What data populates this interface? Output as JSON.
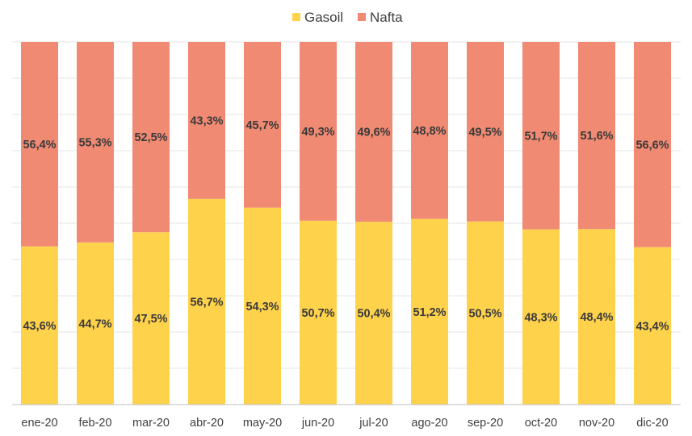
{
  "chart_data": {
    "type": "bar",
    "stacked": "percent",
    "title": "",
    "xlabel": "",
    "ylabel": "",
    "ylim": [
      0,
      100
    ],
    "grid": true,
    "legend_position": "top-center",
    "categories": [
      "ene-20",
      "feb-20",
      "mar-20",
      "abr-20",
      "may-20",
      "jun-20",
      "jul-20",
      "ago-20",
      "sep-20",
      "oct-20",
      "nov-20",
      "dic-20"
    ],
    "series": [
      {
        "name": "Gasoil",
        "color": "#FFD24C",
        "values": [
          43.6,
          44.7,
          47.5,
          56.7,
          54.3,
          50.7,
          50.4,
          51.2,
          50.5,
          48.3,
          48.4,
          43.4
        ],
        "labels": [
          "43,6%",
          "44,7%",
          "47,5%",
          "56,7%",
          "54,3%",
          "50,7%",
          "50,4%",
          "51,2%",
          "50,5%",
          "48,3%",
          "48,4%",
          "43,4%"
        ]
      },
      {
        "name": "Nafta",
        "color": "#F18A73",
        "values": [
          56.4,
          55.3,
          52.5,
          43.3,
          45.7,
          49.3,
          49.6,
          48.8,
          49.5,
          51.7,
          51.6,
          56.6
        ],
        "labels": [
          "56,4%",
          "55,3%",
          "52,5%",
          "43,3%",
          "45,7%",
          "49,3%",
          "49,6%",
          "48,8%",
          "49,5%",
          "51,7%",
          "51,6%",
          "56,6%"
        ]
      }
    ]
  }
}
